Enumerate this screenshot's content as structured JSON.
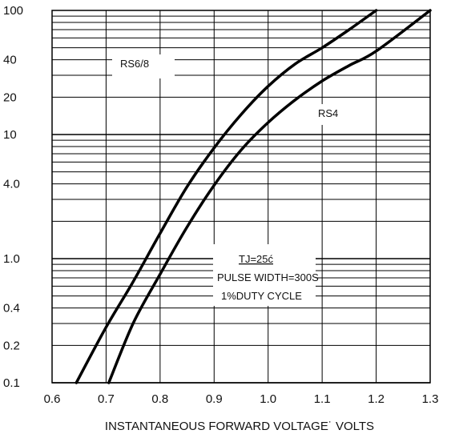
{
  "chart_data": {
    "type": "line",
    "title": "",
    "xlabel": "INSTANTANEOUS FORWARD VOLTAGE˙ VOLTS",
    "ylabel": "",
    "xlim": [
      0.6,
      1.3
    ],
    "ylim": [
      0.1,
      100
    ],
    "x_scale": "linear",
    "y_scale": "log",
    "grid": true,
    "x_ticks": [
      "0.6",
      "0.7",
      "0.8",
      "0.9",
      "1.0",
      "1.1",
      "1.2",
      "1.3"
    ],
    "y_ticks": [
      "100",
      "40",
      "20",
      "10",
      "4.0",
      "1.0",
      "0.4",
      "0.2",
      "0.1"
    ],
    "series": [
      {
        "name": "RS6/8",
        "x": [
          0.645,
          0.7,
          0.75,
          0.8,
          0.85,
          0.9,
          0.95,
          1.0,
          1.05,
          1.1,
          1.15,
          1.2
        ],
        "y": [
          0.1,
          0.28,
          0.65,
          1.6,
          3.8,
          7.8,
          14.5,
          24.5,
          37,
          50,
          70,
          100
        ]
      },
      {
        "name": "RS4",
        "x": [
          0.705,
          0.75,
          0.8,
          0.85,
          0.9,
          0.95,
          1.0,
          1.05,
          1.1,
          1.15,
          1.2,
          1.3
        ],
        "y": [
          0.1,
          0.3,
          0.75,
          1.8,
          3.9,
          7.5,
          12.5,
          19,
          27,
          36,
          47,
          100
        ]
      }
    ],
    "annotations": {
      "rs68": "RS6/8",
      "rs4": "RS4",
      "tj": "TJ=25ć",
      "pulse": "PULSE WIDTH=300S",
      "duty": "1%DUTY CYCLE"
    }
  }
}
